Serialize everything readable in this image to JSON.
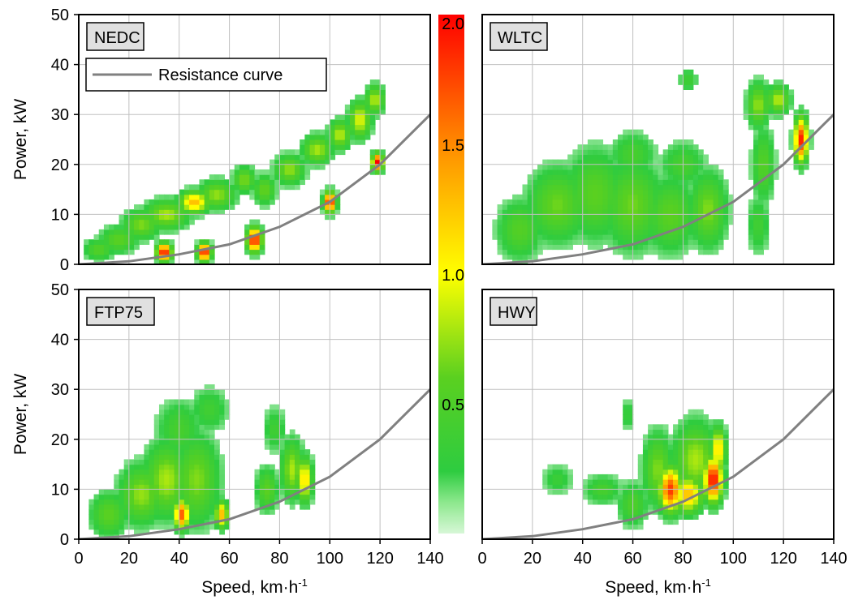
{
  "figure": {
    "x_axis_label": "Speed, km·h",
    "x_axis_label_sup": "-1",
    "y_axis_label": "Power, kW",
    "colorbar": {
      "min": 0,
      "max": 2.0,
      "ticks": [
        "2.0",
        "1.5",
        "1.0",
        "0.5"
      ],
      "tick_values": [
        2.0,
        1.5,
        1.0,
        0.5
      ],
      "colors": [
        "#d7f7d7",
        "#2ecc40",
        "#ffff00",
        "#ff8c00",
        "#ff0000"
      ]
    },
    "legend_entry": "Resistance curve",
    "curve_color": "#808080",
    "grid_color": "#c0c0c0"
  },
  "chart_data": [
    {
      "type": "heatmap",
      "panel_label": "NEDC",
      "xlim": [
        0,
        140
      ],
      "ylim": [
        0,
        50
      ],
      "xticks": [
        0,
        20,
        40,
        60,
        80,
        100,
        120,
        140
      ],
      "yticks": [
        0,
        10,
        20,
        30,
        40,
        50
      ],
      "grid": true,
      "legend_position": "top-left",
      "resistance_curve": [
        [
          0,
          0
        ],
        [
          20,
          0.6
        ],
        [
          40,
          2
        ],
        [
          60,
          4
        ],
        [
          80,
          7.5
        ],
        [
          100,
          12.5
        ],
        [
          120,
          20
        ],
        [
          140,
          30
        ]
      ],
      "density_blobs": [
        {
          "x": 8,
          "y": 3,
          "intensity": 0.55,
          "sx": 4,
          "sy": 1.5
        },
        {
          "x": 16,
          "y": 5,
          "intensity": 0.6,
          "sx": 5,
          "sy": 1.8
        },
        {
          "x": 25,
          "y": 8,
          "intensity": 0.7,
          "sx": 5,
          "sy": 2
        },
        {
          "x": 35,
          "y": 10,
          "intensity": 0.8,
          "sx": 6,
          "sy": 2
        },
        {
          "x": 46,
          "y": 12.5,
          "intensity": 1.3,
          "sx": 4,
          "sy": 1.5
        },
        {
          "x": 55,
          "y": 14,
          "intensity": 0.75,
          "sx": 5,
          "sy": 2
        },
        {
          "x": 66,
          "y": 17,
          "intensity": 0.7,
          "sx": 3,
          "sy": 1.8
        },
        {
          "x": 74,
          "y": 15,
          "intensity": 0.65,
          "sx": 3,
          "sy": 2
        },
        {
          "x": 84,
          "y": 19,
          "intensity": 0.75,
          "sx": 4,
          "sy": 2
        },
        {
          "x": 95,
          "y": 23,
          "intensity": 0.8,
          "sx": 4,
          "sy": 2
        },
        {
          "x": 104,
          "y": 26,
          "intensity": 0.85,
          "sx": 3,
          "sy": 2
        },
        {
          "x": 112,
          "y": 29,
          "intensity": 0.95,
          "sx": 3,
          "sy": 2.5
        },
        {
          "x": 118,
          "y": 33,
          "intensity": 0.85,
          "sx": 2.5,
          "sy": 2
        },
        {
          "x": 34,
          "y": 2.5,
          "intensity": 2.0,
          "sx": 2,
          "sy": 1.2
        },
        {
          "x": 50,
          "y": 2.5,
          "intensity": 2.0,
          "sx": 1.8,
          "sy": 1.2
        },
        {
          "x": 70,
          "y": 5,
          "intensity": 2.0,
          "sx": 2,
          "sy": 1.6
        },
        {
          "x": 100,
          "y": 12.5,
          "intensity": 2.0,
          "sx": 1.6,
          "sy": 1.4
        },
        {
          "x": 119,
          "y": 20.5,
          "intensity": 2.0,
          "sx": 1.5,
          "sy": 1.2
        }
      ]
    },
    {
      "type": "heatmap",
      "panel_label": "WLTC",
      "xlim": [
        0,
        140
      ],
      "ylim": [
        0,
        50
      ],
      "xticks": [
        0,
        20,
        40,
        60,
        80,
        100,
        120,
        140
      ],
      "yticks": [
        0,
        10,
        20,
        30,
        40,
        50
      ],
      "grid": true,
      "resistance_curve": [
        [
          0,
          0
        ],
        [
          20,
          0.6
        ],
        [
          40,
          2
        ],
        [
          60,
          4
        ],
        [
          80,
          7.5
        ],
        [
          100,
          12.5
        ],
        [
          120,
          20
        ],
        [
          140,
          30
        ]
      ],
      "density_blobs": [
        {
          "x": 15,
          "y": 7,
          "intensity": 0.55,
          "sx": 6,
          "sy": 4
        },
        {
          "x": 30,
          "y": 12,
          "intensity": 0.65,
          "sx": 8,
          "sy": 5
        },
        {
          "x": 45,
          "y": 14,
          "intensity": 0.6,
          "sx": 8,
          "sy": 6
        },
        {
          "x": 60,
          "y": 12,
          "intensity": 0.65,
          "sx": 8,
          "sy": 6
        },
        {
          "x": 75,
          "y": 10,
          "intensity": 0.6,
          "sx": 7,
          "sy": 5
        },
        {
          "x": 90,
          "y": 11,
          "intensity": 0.7,
          "sx": 5,
          "sy": 5
        },
        {
          "x": 60,
          "y": 22,
          "intensity": 0.45,
          "sx": 6,
          "sy": 3
        },
        {
          "x": 80,
          "y": 20,
          "intensity": 0.45,
          "sx": 6,
          "sy": 3
        },
        {
          "x": 82,
          "y": 37,
          "intensity": 0.4,
          "sx": 2.5,
          "sy": 1.5
        },
        {
          "x": 110,
          "y": 32,
          "intensity": 0.75,
          "sx": 3,
          "sy": 3
        },
        {
          "x": 118,
          "y": 33,
          "intensity": 0.85,
          "sx": 3,
          "sy": 2
        },
        {
          "x": 112,
          "y": 20,
          "intensity": 0.55,
          "sx": 3,
          "sy": 5
        },
        {
          "x": 127,
          "y": 25,
          "intensity": 1.9,
          "sx": 1.8,
          "sy": 3
        },
        {
          "x": 110,
          "y": 8,
          "intensity": 0.4,
          "sx": 3,
          "sy": 4
        }
      ]
    },
    {
      "type": "heatmap",
      "panel_label": "FTP75",
      "xlim": [
        0,
        140
      ],
      "ylim": [
        0,
        50
      ],
      "xticks": [
        0,
        20,
        40,
        60,
        80,
        100,
        120,
        140
      ],
      "yticks": [
        0,
        10,
        20,
        30,
        40,
        50
      ],
      "grid": true,
      "resistance_curve": [
        [
          0,
          0
        ],
        [
          20,
          0.6
        ],
        [
          40,
          2
        ],
        [
          60,
          4
        ],
        [
          80,
          7.5
        ],
        [
          100,
          12.5
        ],
        [
          120,
          20
        ],
        [
          140,
          30
        ]
      ],
      "density_blobs": [
        {
          "x": 12,
          "y": 5,
          "intensity": 0.6,
          "sx": 5,
          "sy": 3
        },
        {
          "x": 25,
          "y": 9,
          "intensity": 0.75,
          "sx": 6,
          "sy": 4
        },
        {
          "x": 35,
          "y": 12,
          "intensity": 0.8,
          "sx": 6,
          "sy": 5
        },
        {
          "x": 47,
          "y": 12,
          "intensity": 0.7,
          "sx": 6,
          "sy": 6
        },
        {
          "x": 40,
          "y": 22,
          "intensity": 0.45,
          "sx": 6,
          "sy": 4
        },
        {
          "x": 52,
          "y": 26,
          "intensity": 0.4,
          "sx": 5,
          "sy": 3
        },
        {
          "x": 41,
          "y": 5,
          "intensity": 1.7,
          "sx": 2,
          "sy": 2
        },
        {
          "x": 57,
          "y": 5,
          "intensity": 1.3,
          "sx": 1.8,
          "sy": 1.8
        },
        {
          "x": 75,
          "y": 10,
          "intensity": 0.6,
          "sx": 3,
          "sy": 3
        },
        {
          "x": 85,
          "y": 14,
          "intensity": 0.8,
          "sx": 3,
          "sy": 4
        },
        {
          "x": 90,
          "y": 12,
          "intensity": 1.2,
          "sx": 2,
          "sy": 3
        },
        {
          "x": 78,
          "y": 22,
          "intensity": 0.4,
          "sx": 3,
          "sy": 3
        }
      ]
    },
    {
      "type": "heatmap",
      "panel_label": "HWY",
      "xlim": [
        0,
        140
      ],
      "ylim": [
        0,
        50
      ],
      "xticks": [
        0,
        20,
        40,
        60,
        80,
        100,
        120,
        140
      ],
      "yticks": [
        0,
        10,
        20,
        30,
        40,
        50
      ],
      "grid": true,
      "resistance_curve": [
        [
          0,
          0
        ],
        [
          20,
          0.6
        ],
        [
          40,
          2
        ],
        [
          60,
          4
        ],
        [
          80,
          7.5
        ],
        [
          100,
          12.5
        ],
        [
          120,
          20
        ],
        [
          140,
          30
        ]
      ],
      "density_blobs": [
        {
          "x": 30,
          "y": 12,
          "intensity": 0.35,
          "sx": 4,
          "sy": 2
        },
        {
          "x": 48,
          "y": 10,
          "intensity": 0.45,
          "sx": 5,
          "sy": 2
        },
        {
          "x": 60,
          "y": 7,
          "intensity": 0.5,
          "sx": 4,
          "sy": 3
        },
        {
          "x": 58,
          "y": 25,
          "intensity": 0.35,
          "sx": 2,
          "sy": 2
        },
        {
          "x": 70,
          "y": 14,
          "intensity": 0.7,
          "sx": 4,
          "sy": 5
        },
        {
          "x": 85,
          "y": 16,
          "intensity": 0.8,
          "sx": 6,
          "sy": 5
        },
        {
          "x": 75,
          "y": 10,
          "intensity": 1.8,
          "sx": 3,
          "sy": 3
        },
        {
          "x": 92,
          "y": 12,
          "intensity": 2.0,
          "sx": 2.5,
          "sy": 3
        },
        {
          "x": 82,
          "y": 9,
          "intensity": 1.3,
          "sx": 4,
          "sy": 2.5
        },
        {
          "x": 94,
          "y": 18,
          "intensity": 1.2,
          "sx": 2,
          "sy": 3
        }
      ]
    }
  ]
}
